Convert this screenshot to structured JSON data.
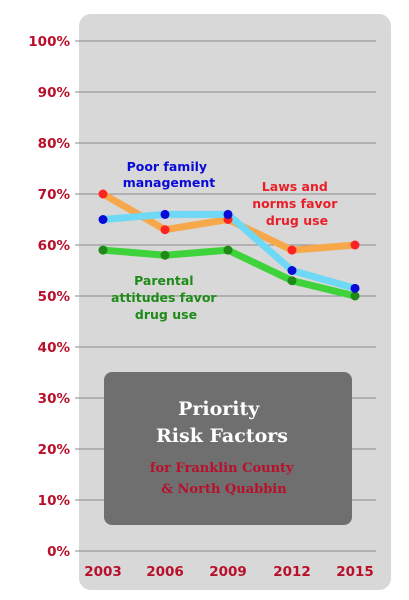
{
  "chart_data": {
    "type": "line",
    "categories": [
      "2003",
      "2006",
      "2009",
      "2012",
      "2015"
    ],
    "y_ticks": [
      "0%",
      "10%",
      "20%",
      "30%",
      "40%",
      "50%",
      "60%",
      "70%",
      "80%",
      "90%",
      "100%"
    ],
    "ylim": [
      0,
      100
    ],
    "grid": true,
    "series": [
      {
        "name": "Laws and norms favor drug use",
        "values": [
          70,
          63,
          65,
          59,
          60
        ],
        "line_color": "#f7a84b",
        "marker_color": "#ff2222"
      },
      {
        "name": "Poor family management",
        "values": [
          65,
          66,
          66,
          55,
          51.5
        ],
        "line_color": "#6fd8f5",
        "marker_color": "#0a0ad8"
      },
      {
        "name": "Parental attitudes favor drug use",
        "values": [
          59,
          58,
          59,
          53,
          50
        ],
        "line_color": "#3ed23b",
        "marker_color": "#1f8a18"
      }
    ],
    "annotations": {
      "poor_family": [
        "Poor family",
        "management"
      ],
      "laws_norms": [
        "Laws and",
        "norms favor",
        "drug use"
      ],
      "parental": [
        "Parental",
        "attitudes favor",
        "drug use"
      ]
    },
    "title_box": {
      "title_lines": [
        "Priority",
        "Risk Factors"
      ],
      "subtitle_lines": [
        "for Franklin County",
        "& North Quabbin"
      ]
    },
    "colors": {
      "panel": "#d8d8d8",
      "grid": "#8a8a8a",
      "tick_text": "#b8102a",
      "box": "#6f6f6f",
      "poor_family_text": "#0a0ad8",
      "laws_norms_text": "#e8202a",
      "parental_text": "#1e8a18"
    }
  }
}
